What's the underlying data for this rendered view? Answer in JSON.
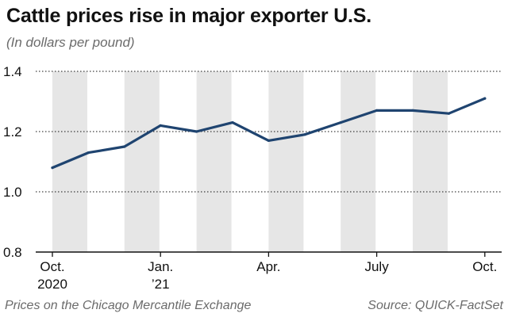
{
  "header": {
    "title": "Cattle prices rise in major exporter U.S.",
    "subtitle": "(In dollars per pound)"
  },
  "footer": {
    "note": "Prices on the Chicago Mercantile Exchange",
    "source": "Source: QUICK-FactSet"
  },
  "colors": {
    "line": "#1f4470",
    "band": "#e6e6e6",
    "axis": "#111111"
  },
  "chart_data": {
    "type": "line",
    "title": "Cattle prices rise in major exporter U.S.",
    "subtitle": "(In dollars per pound)",
    "xlabel": "",
    "ylabel": "",
    "ylim": [
      0.8,
      1.4
    ],
    "yticks": [
      "0.8",
      "1.0",
      "1.2",
      "1.4"
    ],
    "x_index_range": [
      0,
      12
    ],
    "xtick_labels": [
      {
        "index": 0,
        "lines": [
          "Oct.",
          "2020"
        ]
      },
      {
        "index": 3,
        "lines": [
          "Jan.",
          "’21"
        ]
      },
      {
        "index": 6,
        "lines": [
          "Apr."
        ]
      },
      {
        "index": 9,
        "lines": [
          "July"
        ]
      },
      {
        "index": 12,
        "lines": [
          "Oct."
        ]
      }
    ],
    "shaded_month_indices": [
      0,
      2,
      4,
      6,
      8,
      10
    ],
    "series": [
      {
        "name": "Cattle price",
        "x": [
          0,
          1,
          2,
          3,
          4,
          5,
          6,
          7,
          8,
          9,
          10,
          11,
          12
        ],
        "values": [
          1.08,
          1.13,
          1.15,
          1.22,
          1.2,
          1.23,
          1.17,
          1.19,
          1.23,
          1.27,
          1.27,
          1.26,
          1.31
        ]
      }
    ]
  }
}
